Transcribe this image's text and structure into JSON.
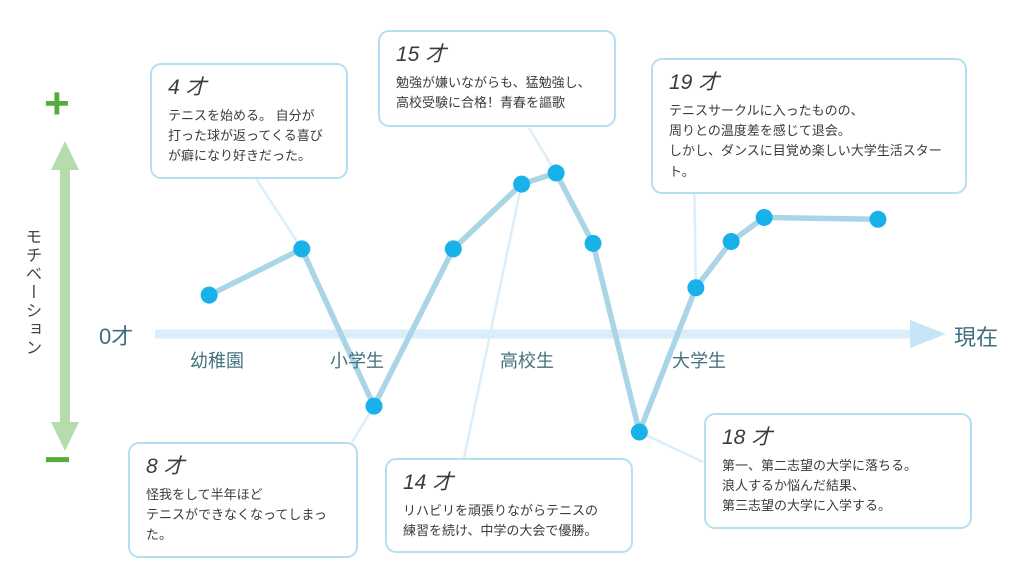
{
  "y_axis": {
    "label": "モチベーション",
    "plus": "+",
    "minus": "−"
  },
  "x_axis": {
    "origin_label": "0才",
    "end_label": "現在",
    "stages": [
      {
        "label": "幼稚園"
      },
      {
        "label": "小学生"
      },
      {
        "label": "高校生"
      },
      {
        "label": "大学生"
      }
    ]
  },
  "annotations": [
    {
      "id": "age4",
      "age": "4 才",
      "lines": [
        "テニスを始める。 自分が",
        "打った球が返ってくる喜び",
        "が癖になり好きだった。"
      ],
      "connects_to_point": 1
    },
    {
      "id": "age15",
      "age": "15 才",
      "lines": [
        "勉強が嫌いながらも、猛勉強し、",
        "高校受験に合格！青春を謳歌"
      ],
      "connects_to_point": 5
    },
    {
      "id": "age19",
      "age": "19 才",
      "lines": [
        "テニスサークルに入ったものの、",
        "周りとの温度差を感じて退会。",
        "しかし、ダンスに目覚め楽しい大学生活スタート。"
      ],
      "connects_to_point": 8
    },
    {
      "id": "age8",
      "age": "8 才",
      "lines": [
        "怪我をして半年ほど",
        "テニスができなくなってしまった。"
      ],
      "connects_to_point": 2
    },
    {
      "id": "age14",
      "age": "14 才",
      "lines": [
        "リハビリを頑張りながらテニスの",
        "練習を続け、中学の大会で優勝。"
      ],
      "connects_to_point": 4
    },
    {
      "id": "age18",
      "age": "18 才",
      "lines": [
        "第一、第二志望の大学に落ちる。",
        "浪人するか悩んだ結果、",
        "第三志望の大学に入学する。"
      ],
      "connects_to_point": 7
    }
  ],
  "chart_data": {
    "type": "line",
    "ylabel": "モチベーション",
    "ylim": [
      -100,
      100
    ],
    "x_start_label": "0才",
    "x_end_label": "現在",
    "stage_labels": [
      "幼稚園",
      "小学生",
      "高校生",
      "大学生"
    ],
    "legend": [],
    "grid": false,
    "points": [
      {
        "age": "",
        "x": 0.069,
        "motivation": 21
      },
      {
        "age": "4才",
        "x": 0.187,
        "motivation": 46
      },
      {
        "age": "8才",
        "x": 0.279,
        "motivation": -39
      },
      {
        "age": "",
        "x": 0.38,
        "motivation": 46
      },
      {
        "age": "14才",
        "x": 0.467,
        "motivation": 81
      },
      {
        "age": "15才",
        "x": 0.511,
        "motivation": 87
      },
      {
        "age": "",
        "x": 0.558,
        "motivation": 49
      },
      {
        "age": "18才",
        "x": 0.617,
        "motivation": -53
      },
      {
        "age": "19才",
        "x": 0.689,
        "motivation": 25
      },
      {
        "age": "",
        "x": 0.734,
        "motivation": 50
      },
      {
        "age": "",
        "x": 0.776,
        "motivation": 63
      },
      {
        "age": "現在",
        "x": 0.921,
        "motivation": 62
      }
    ]
  },
  "colors": {
    "dot": "#18b1e9",
    "line": "#a9d5e6",
    "axis": "#d9edfb",
    "axis_head": "#c7e5f7",
    "leader": "#dceefa",
    "box_border": "#b5dff2",
    "green_symbol": "#54ac3a",
    "green_arrow": "#b7dcab",
    "stage_text": "#45717f",
    "note_text": "#3b3b3b"
  }
}
